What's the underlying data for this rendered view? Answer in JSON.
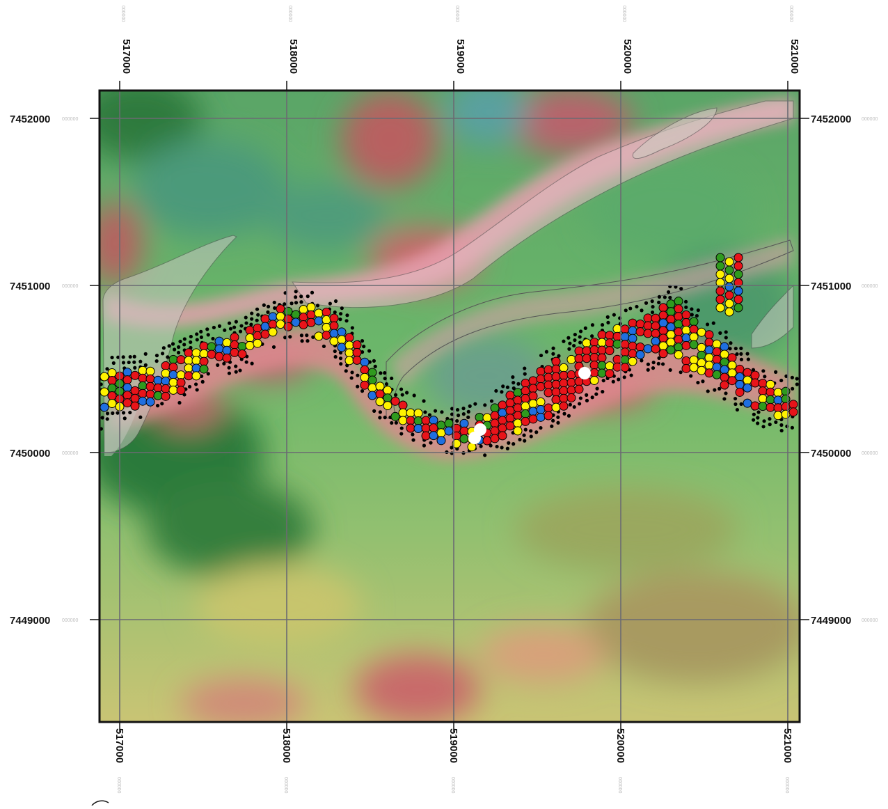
{
  "map": {
    "x_ticks": [
      {
        "label": "517000",
        "sub": "000000"
      },
      {
        "label": "518000",
        "sub": "000000"
      },
      {
        "label": "519000",
        "sub": "000000"
      },
      {
        "label": "520000",
        "sub": "000000"
      },
      {
        "label": "521000",
        "sub": "000000"
      }
    ],
    "y_ticks": [
      {
        "label": "7452000",
        "sub": "000000"
      },
      {
        "label": "7451000",
        "sub": "000000"
      },
      {
        "label": "7450000",
        "sub": "000000"
      },
      {
        "label": "7449000",
        "sub": "000000"
      }
    ],
    "colors": {
      "frame": "#111111",
      "grid": "#6b6b72",
      "red_points": "#e8141a",
      "yellow_points": "#fff200",
      "green_points": "#2f9a1e",
      "blue_points": "#1f6fe0",
      "dense_markers": "#000000",
      "highlight_points": "#ffffff"
    }
  }
}
